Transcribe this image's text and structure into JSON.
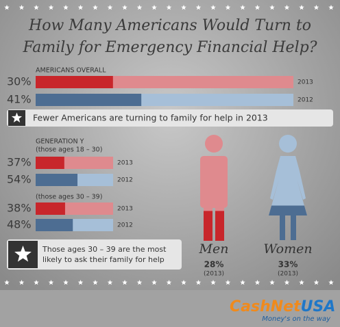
{
  "title": [
    "How Many Americans Would Turn to",
    "Family for Emergency Financial Help?"
  ],
  "groups": [
    {
      "label": "AMERICANS OVERALL",
      "values": [
        30,
        41
      ],
      "value_labels": [
        "30%",
        "41%"
      ],
      "years": [
        "2013",
        "2012"
      ]
    },
    {
      "label": "GENERATION Y",
      "sublabel": "(those ages 18 – 30)",
      "values": [
        37,
        54
      ],
      "value_labels": [
        "37%",
        "54%"
      ],
      "years": [
        "2013",
        "2012"
      ]
    },
    {
      "sublabel": "(those ages 30 – 39)",
      "values": [
        38,
        48
      ],
      "value_labels": [
        "38%",
        "48%"
      ],
      "years": [
        "2013",
        "2012"
      ]
    }
  ],
  "colors": [
    "#c8262b",
    "#4d6d92"
  ],
  "light_colors": [
    "#df8a8e",
    "#a6bfd8"
  ],
  "note1": "Fewer Americans are turning to family for help in 2013",
  "note2": [
    "Those ages 30 – 39 are the most",
    "likely to ask their family for help"
  ],
  "gender": [
    {
      "name": "Men",
      "value": 28,
      "value_label": "28%",
      "year": "(2013)"
    },
    {
      "name": "Women",
      "value": 33,
      "value_label": "33%",
      "year": "(2013)"
    }
  ],
  "brand": [
    "CashNet",
    "USA"
  ],
  "tagline": "Money's on the way"
}
